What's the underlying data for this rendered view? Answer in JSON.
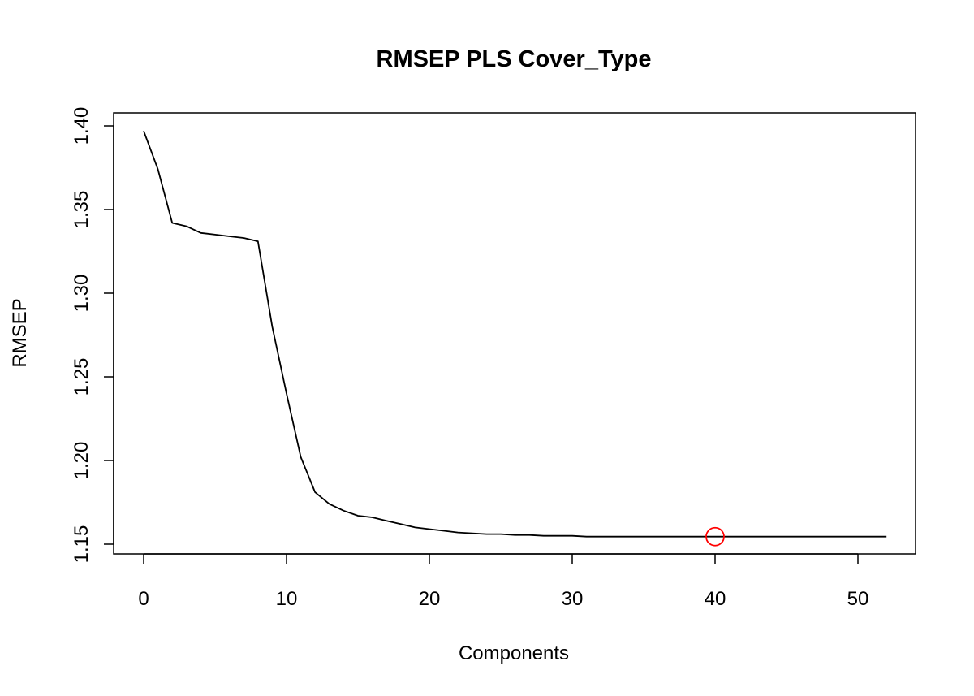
{
  "chart_data": {
    "type": "line",
    "title": "RMSEP PLS Cover_Type",
    "xlabel": "Components",
    "ylabel": "RMSEP",
    "xlim": [
      0,
      52
    ],
    "ylim": [
      1.15,
      1.4
    ],
    "grid": false,
    "legend": "none",
    "x_ticks": [
      0,
      10,
      20,
      30,
      40,
      50
    ],
    "y_ticks": [
      1.15,
      1.2,
      1.25,
      1.3,
      1.35,
      1.4
    ],
    "x_tick_labels": [
      "0",
      "10",
      "20",
      "30",
      "40",
      "50"
    ],
    "y_tick_labels": [
      "1.15",
      "1.20",
      "1.25",
      "1.30",
      "1.35",
      "1.40"
    ],
    "series": [
      {
        "line_color": "#000000",
        "x": [
          0,
          1,
          2,
          3,
          4,
          5,
          6,
          7,
          8,
          9,
          10,
          11,
          12,
          13,
          14,
          15,
          16,
          17,
          18,
          19,
          20,
          21,
          22,
          23,
          24,
          25,
          26,
          27,
          28,
          29,
          30,
          31,
          32,
          33,
          34,
          35,
          36,
          37,
          38,
          39,
          40,
          41,
          42,
          43,
          44,
          45,
          46,
          47,
          48,
          49,
          50,
          51,
          52
        ],
        "values": [
          1.397,
          1.374,
          1.342,
          1.34,
          1.336,
          1.335,
          1.334,
          1.333,
          1.331,
          1.28,
          1.24,
          1.202,
          1.181,
          1.174,
          1.17,
          1.167,
          1.166,
          1.164,
          1.162,
          1.16,
          1.159,
          1.158,
          1.157,
          1.1565,
          1.156,
          1.156,
          1.1555,
          1.1555,
          1.155,
          1.155,
          1.155,
          1.1545,
          1.1545,
          1.1545,
          1.1545,
          1.1545,
          1.1545,
          1.1545,
          1.1545,
          1.1545,
          1.1545,
          1.1545,
          1.1545,
          1.1545,
          1.1545,
          1.1545,
          1.1545,
          1.1545,
          1.1545,
          1.1545,
          1.1545,
          1.1545,
          1.1545
        ]
      }
    ],
    "highlight": {
      "x": 40,
      "y": 1.1545,
      "marker": "circle",
      "color": "#ff0000"
    }
  }
}
